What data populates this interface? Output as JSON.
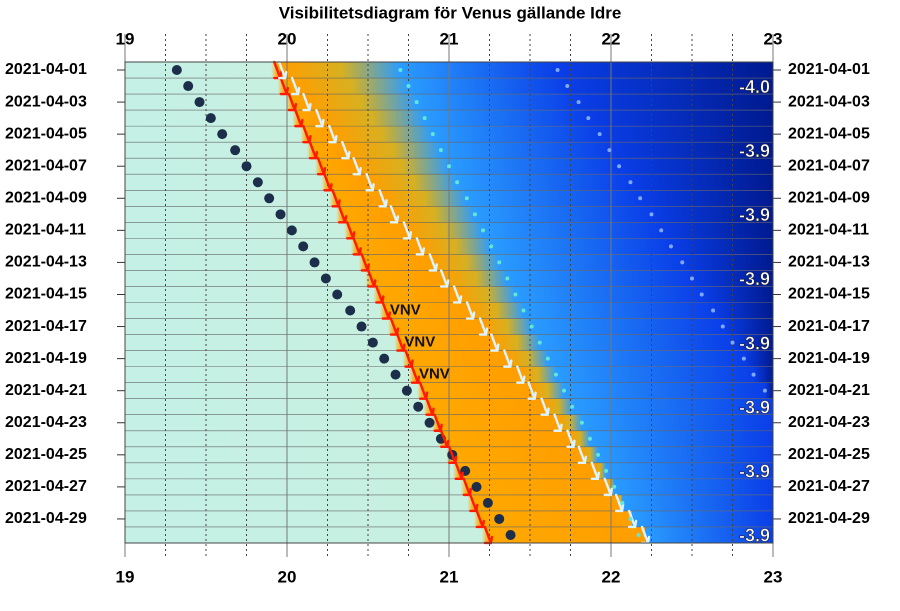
{
  "chart_data": {
    "type": "visibility",
    "title": "Visibilitetsdiagram för Venus gällande Idre",
    "categories": [
      "2021-04-01",
      null,
      "2021-04-03",
      null,
      "2021-04-05",
      null,
      "2021-04-07",
      null,
      "2021-04-09",
      null,
      "2021-04-11",
      null,
      "2021-04-13",
      null,
      "2021-04-15",
      null,
      "2021-04-17",
      null,
      "2021-04-19",
      null,
      "2021-04-21",
      null,
      "2021-04-23",
      null,
      "2021-04-25",
      null,
      "2021-04-27",
      null,
      "2021-04-29",
      null
    ],
    "xlim": [
      19,
      23
    ],
    "xticks": [
      19,
      20,
      21,
      22,
      23
    ],
    "xminor": [
      19.25,
      19.5,
      19.75,
      20.25,
      20.5,
      20.75,
      21.25,
      21.5,
      21.75,
      22.25,
      22.5,
      22.75
    ],
    "grid": true,
    "series": [
      {
        "name": "sunset",
        "marker": "dot",
        "color": "#1c2e4a",
        "values": [
          19.32,
          19.39,
          19.46,
          19.53,
          19.6,
          19.68,
          19.75,
          19.82,
          19.89,
          19.96,
          20.03,
          20.1,
          20.17,
          20.24,
          20.31,
          20.39,
          20.46,
          20.53,
          20.6,
          20.67,
          20.74,
          20.81,
          20.88,
          20.95,
          21.02,
          21.1,
          21.17,
          21.24,
          21.31,
          21.38
        ]
      },
      {
        "name": "venus-set",
        "marker": "arrow",
        "color": "#ff1a00",
        "values": [
          19.94,
          19.98,
          20.03,
          20.07,
          20.12,
          20.16,
          20.21,
          20.25,
          20.3,
          20.34,
          20.39,
          20.43,
          20.48,
          20.52,
          20.57,
          20.61,
          20.66,
          20.7,
          20.75,
          20.79,
          20.84,
          20.88,
          20.93,
          20.97,
          21.02,
          21.06,
          21.11,
          21.15,
          21.19,
          21.24
        ]
      },
      {
        "name": "twilight-arrow",
        "marker": "arrow",
        "color": "#ddf4ff",
        "values": [
          19.97,
          20.05,
          20.12,
          20.2,
          20.28,
          20.36,
          20.43,
          20.51,
          20.59,
          20.66,
          20.74,
          20.82,
          20.9,
          20.97,
          21.05,
          21.13,
          21.21,
          21.28,
          21.36,
          21.44,
          21.51,
          21.59,
          21.67,
          21.75,
          21.82,
          21.9,
          21.98,
          22.05,
          22.13,
          22.21
        ]
      },
      {
        "name": "nautical",
        "marker": "small",
        "color": "#5fe8d8",
        "values": [
          20.7,
          20.75,
          20.8,
          20.85,
          20.9,
          20.95,
          21.0,
          21.05,
          21.11,
          21.16,
          21.21,
          21.26,
          21.31,
          21.36,
          21.41,
          21.46,
          21.51,
          21.56,
          21.61,
          21.66,
          21.71,
          21.76,
          21.82,
          21.87,
          21.92,
          21.97,
          22.02,
          22.07,
          22.12,
          22.17
        ]
      },
      {
        "name": "astronomical",
        "marker": "small",
        "color": "#7fa8ff",
        "values": [
          21.67,
          21.73,
          21.8,
          21.86,
          21.93,
          21.99,
          22.05,
          22.12,
          22.18,
          22.25,
          22.31,
          22.37,
          22.44,
          22.5,
          22.56,
          22.63,
          22.69,
          22.75,
          22.82,
          22.88,
          22.95,
          null,
          null,
          null,
          null,
          null,
          null,
          null,
          null,
          null
        ]
      }
    ],
    "magnitude": [
      null,
      -4.0,
      null,
      null,
      null,
      -3.9,
      null,
      null,
      null,
      -3.9,
      null,
      null,
      null,
      -3.9,
      null,
      null,
      null,
      -3.9,
      null,
      null,
      null,
      -3.9,
      null,
      null,
      null,
      -3.9,
      null,
      null,
      null,
      -3.9
    ],
    "magnitude_labels": [
      null,
      "-4.0",
      null,
      null,
      null,
      "-3.9",
      null,
      null,
      null,
      "-3.9",
      null,
      null,
      null,
      "-3.9",
      null,
      null,
      null,
      "-3.9",
      null,
      null,
      null,
      "-3.9",
      null,
      null,
      null,
      "-3.9",
      null,
      null,
      null,
      "-3.9"
    ],
    "direction": [
      null,
      null,
      null,
      null,
      null,
      null,
      null,
      null,
      null,
      null,
      null,
      null,
      null,
      null,
      null,
      "VNV",
      null,
      "VNV",
      null,
      "VNV",
      null,
      null,
      null,
      null,
      null,
      null,
      null,
      null,
      null,
      null
    ]
  }
}
